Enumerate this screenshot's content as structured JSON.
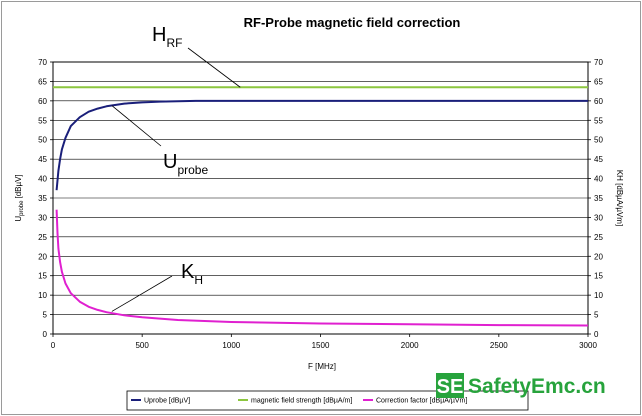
{
  "chart_data": {
    "type": "line",
    "title": "RF-Probe magnetic field correction",
    "xlabel": "F [MHz]",
    "ylabel_left_main": "U",
    "ylabel_left_sub": "probe",
    "ylabel_left_unit": "[dBµV]",
    "ylabel_right": "KH [dBµA/µVm]",
    "xlim": [
      0,
      3000
    ],
    "ylim": [
      0,
      70
    ],
    "x_ticks": [
      "0",
      "500",
      "1000",
      "1500",
      "2000",
      "2500",
      "3000"
    ],
    "y_ticks": [
      "0",
      "5",
      "10",
      "15",
      "20",
      "25",
      "30",
      "35",
      "40",
      "45",
      "50",
      "55",
      "60",
      "65",
      "70"
    ],
    "grid": true,
    "legend_position": "bottom",
    "series": [
      {
        "name": "Uprobe [dBµV]",
        "color": "#1a1f7a",
        "x": [
          20,
          30,
          40,
          50,
          70,
          100,
          150,
          200,
          250,
          300,
          400,
          500,
          600,
          700,
          800,
          1000,
          1500,
          2000,
          2500,
          3000
        ],
        "y": [
          37,
          42,
          45,
          47.5,
          50.5,
          53.5,
          55.8,
          57.2,
          58,
          58.6,
          59.3,
          59.6,
          59.8,
          59.9,
          60,
          60,
          60,
          60,
          60,
          60
        ]
      },
      {
        "name": "magnetic field strength [dBµA/m]",
        "color": "#8cc63f",
        "x": [
          0,
          3000
        ],
        "y": [
          63.5,
          63.5
        ]
      },
      {
        "name": "Correction factor [dBµA/µVm]",
        "color": "#e020d0",
        "x": [
          20,
          25,
          30,
          40,
          50,
          70,
          100,
          150,
          200,
          250,
          300,
          400,
          500,
          700,
          1000,
          1500,
          2000,
          2500,
          3000
        ],
        "y": [
          32,
          26,
          22,
          18.5,
          16,
          13,
          10.5,
          8.3,
          7,
          6.2,
          5.6,
          4.8,
          4.3,
          3.6,
          3.1,
          2.7,
          2.5,
          2.3,
          2.2
        ]
      }
    ],
    "annotations": [
      {
        "main": "H",
        "sub": "RF",
        "target_x": 1050,
        "target_y": 63.5
      },
      {
        "main": "U",
        "sub": "probe",
        "target_x": 330,
        "target_y": 58.8
      },
      {
        "main": "K",
        "sub": "H",
        "target_x": 330,
        "target_y": 5.8
      }
    ]
  },
  "watermark": {
    "badge": "SE",
    "text": "SafetyEmc.cn",
    "color": "#27a33c"
  }
}
